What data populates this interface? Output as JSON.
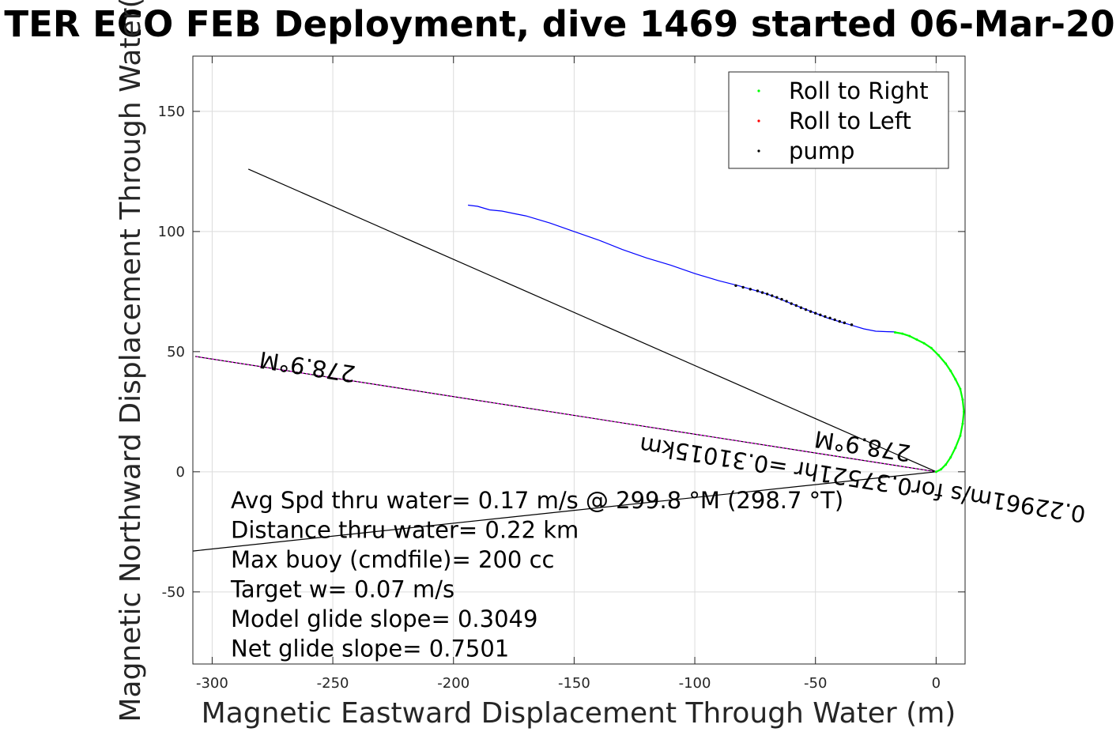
{
  "colors": {
    "roll_right": "#00ff00",
    "roll_left": "#ff0000",
    "pump": "#000000",
    "track": "#0000ff",
    "heading_line": "#ff00ff",
    "reference_line": "#000000",
    "grid": "#dcdcdc"
  },
  "chart_data": {
    "type": "line",
    "title": "TER ECO FEB Deployment, dive 1469 started 06-Mar-20",
    "xlabel": "Magnetic Eastward Displacement Through Water (m)",
    "ylabel": "Magnetic Northward Displacement Through Water(",
    "xlim": [
      -308,
      12
    ],
    "ylim": [
      -80,
      173
    ],
    "xticks": [
      -300,
      -250,
      -200,
      -150,
      -100,
      -50,
      0
    ],
    "yticks": [
      -50,
      0,
      50,
      100,
      150
    ],
    "xtick_labels": [
      "-300",
      "-250",
      "-200",
      "-150",
      "-100",
      "-50",
      "0"
    ],
    "ytick_labels": [
      "-50",
      "0",
      "50",
      "100",
      "150"
    ],
    "grid": true,
    "legend": {
      "position": "top-right",
      "entries": [
        "Roll to Right",
        "Roll to Left",
        "pump"
      ]
    },
    "track": {
      "name": "track",
      "x": [
        -194,
        -190,
        -185,
        -180,
        -175,
        -170,
        -160,
        -150,
        -140,
        -130,
        -120,
        -110,
        -100,
        -90,
        -82,
        -75,
        -70,
        -65,
        -60,
        -55,
        -50,
        -45,
        -40,
        -35,
        -30,
        -25,
        -20,
        -17
      ],
      "y": [
        111,
        110.5,
        109,
        108.5,
        107.5,
        106.5,
        103.5,
        100,
        96.5,
        92.5,
        89,
        86,
        82.5,
        79.5,
        77.5,
        75.5,
        74,
        72,
        70,
        68,
        66,
        64,
        62.5,
        61,
        59.5,
        58.5,
        58.3,
        58.2
      ]
    },
    "roll_right": {
      "x": [
        -17,
        -14,
        -11,
        -8,
        -5,
        -2,
        1,
        4,
        6,
        8,
        10,
        11,
        11.5,
        11,
        10,
        8,
        6,
        4,
        2,
        0
      ],
      "y": [
        58,
        57.5,
        56.5,
        55,
        53.5,
        51.5,
        48.5,
        45,
        42,
        38.5,
        34.5,
        30,
        25,
        20,
        15,
        10,
        6,
        3,
        1,
        0
      ]
    },
    "pump": {
      "x": [
        -83,
        -80,
        -77,
        -74,
        -72,
        -70,
        -68,
        -66,
        -64,
        -62,
        -60,
        -58,
        -56,
        -54,
        -52,
        -50,
        -48,
        -46,
        -44,
        -42,
        -40,
        -38,
        -35
      ],
      "y": [
        77.5,
        76.8,
        76,
        75.3,
        74.6,
        74,
        73.3,
        72.6,
        71.8,
        71,
        70,
        69.2,
        68.3,
        67.5,
        66.7,
        66,
        65.3,
        64.6,
        64,
        63.3,
        62.6,
        62,
        61.2
      ]
    },
    "heading_line": {
      "x": [
        0,
        -307
      ],
      "y": [
        0,
        48
      ]
    },
    "reference_lines": [
      {
        "x": [
          0,
          -285
        ],
        "y": [
          0,
          126
        ]
      },
      {
        "x": [
          0,
          -308
        ],
        "y": [
          0,
          -33
        ]
      }
    ],
    "rotated_labels": [
      {
        "text": "278.9°M",
        "x": -260,
        "y": 47,
        "rotation": 188.9
      },
      {
        "text": "278.9°M",
        "x": -30,
        "y": 14,
        "rotation": 188.9
      },
      {
        "text": "0.22961m/s for0.37521hr =0.31015km",
        "x": -30,
        "y": 0,
        "rotation": 188.9
      }
    ],
    "annotations": [
      "Avg Spd thru water=  0.17 m/s @ 299.8 °M (298.7 °T)",
      "Distance thru water=  0.22 km",
      "Max buoy (cmdfile)= 200 cc",
      "Target w= 0.07 m/s",
      "Model glide slope= 0.3049",
      "Net glide slope= 0.7501"
    ]
  }
}
